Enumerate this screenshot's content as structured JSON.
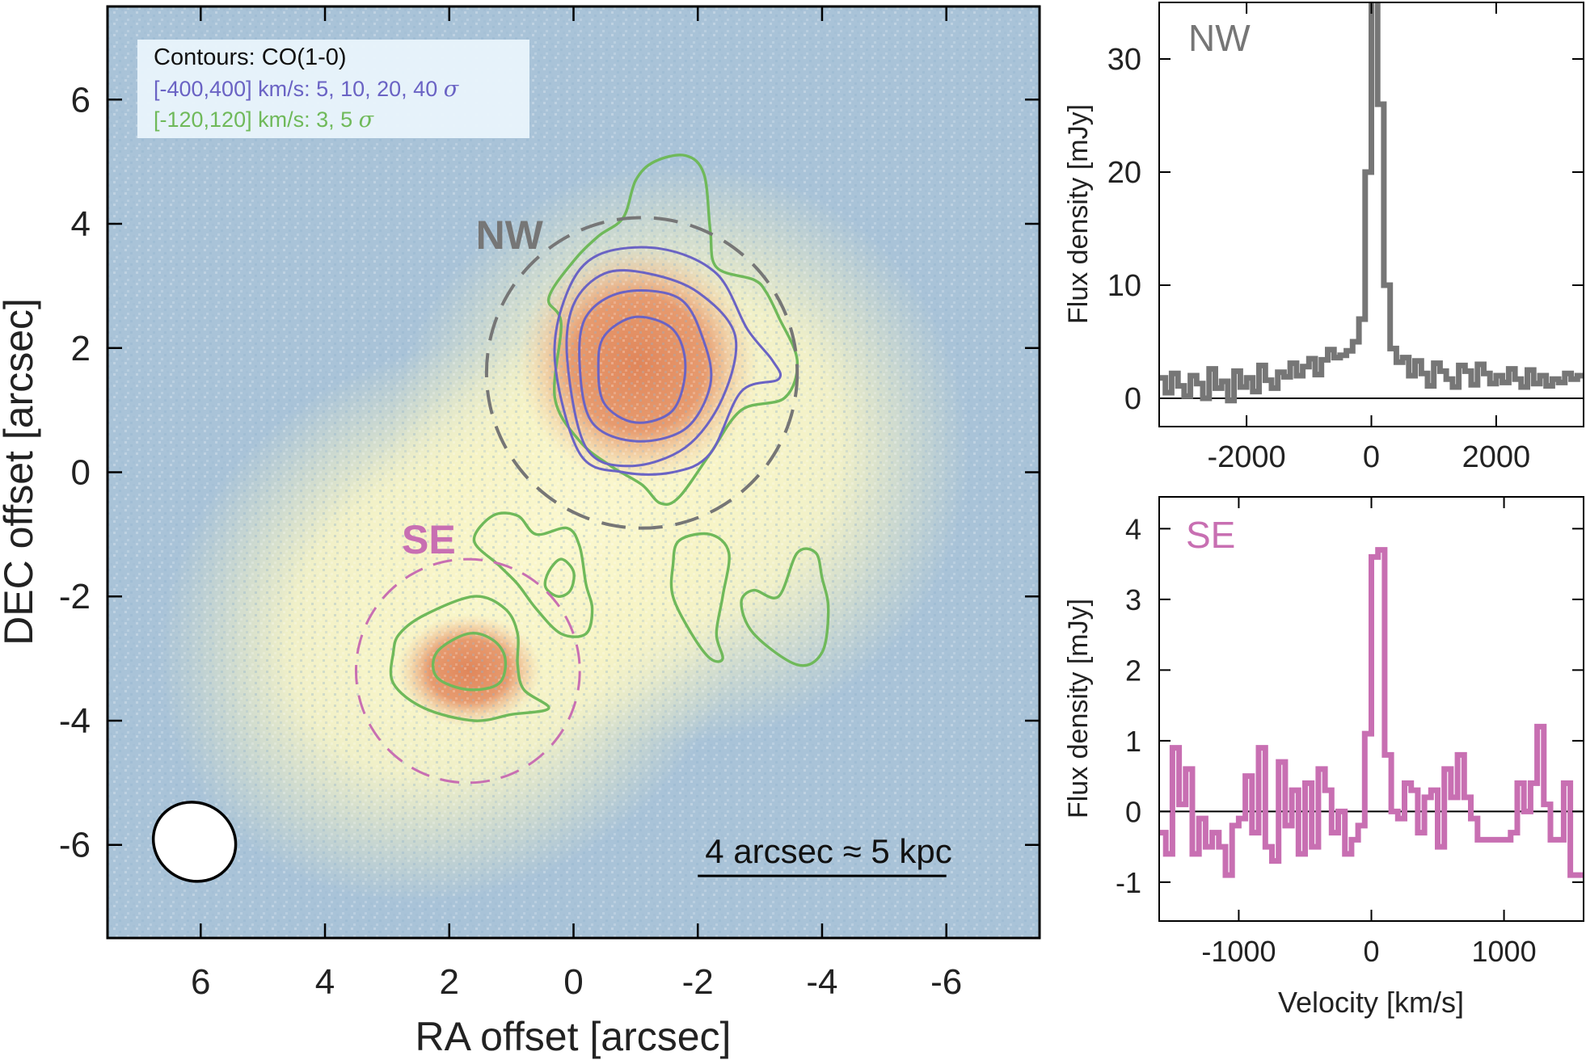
{
  "chart_data": [
    {
      "type": "image",
      "panel": "map",
      "xlabel": "RA offset [arcsec]",
      "ylabel": "DEC offset [arcsec]",
      "xlim": [
        7.5,
        -7.5
      ],
      "ylim": [
        -7.5,
        7.5
      ],
      "xticks": [
        6,
        4,
        2,
        0,
        -2,
        -4,
        -6
      ],
      "yticks": [
        6,
        4,
        2,
        0,
        -2,
        -4,
        -6
      ],
      "xtick_labels": [
        "6",
        "4",
        "2",
        "0",
        "-2",
        "-4",
        "-6"
      ],
      "ytick_labels": [
        "6",
        "4",
        "2",
        "0",
        "-2",
        "-4",
        "-6"
      ],
      "colors": {
        "background": "#a9c3d8",
        "halo": "#f7f4c6",
        "core": "#e0865a",
        "contour_broad": "#6a63c4",
        "contour_narrow": "#6fb95a",
        "nw": "#767676",
        "se": "#c86fb2"
      },
      "legend": {
        "title": "Contours: CO(1-0)",
        "broad": "[-400,400] km/s: 5, 10, 20, 40",
        "narrow": "[-120,120] km/s: 3, 5",
        "sigma": "σ"
      },
      "regions": [
        {
          "name": "NW",
          "center": [
            -1.1,
            1.6
          ],
          "radius": 2.5
        },
        {
          "name": "SE",
          "center": [
            1.7,
            -3.2
          ],
          "radius": 1.8
        }
      ],
      "scale_bar": {
        "label": "4 arcsec ≈ 5 kpc",
        "from": -2.0,
        "to": -6.0,
        "dec": -6.5
      },
      "beam": {
        "center": [
          6.1,
          -5.95
        ],
        "major": 1.35,
        "minor": 1.25,
        "angle_deg": 30
      },
      "contours_broad": [
        {
          "level": "40σ",
          "points": [
            [
              -0.4,
              1.7
            ],
            [
              -0.5,
              2.2
            ],
            [
              -1.0,
              2.5
            ],
            [
              -1.6,
              2.3
            ],
            [
              -1.8,
              1.7
            ],
            [
              -1.6,
              1.0
            ],
            [
              -1.0,
              0.8
            ],
            [
              -0.5,
              1.1
            ]
          ]
        },
        {
          "level": "20σ",
          "points": [
            [
              -0.1,
              1.7
            ],
            [
              -0.2,
              2.5
            ],
            [
              -0.8,
              2.9
            ],
            [
              -1.7,
              2.8
            ],
            [
              -2.1,
              2.1
            ],
            [
              -2.2,
              1.4
            ],
            [
              -1.8,
              0.7
            ],
            [
              -1.0,
              0.5
            ],
            [
              -0.3,
              0.8
            ]
          ]
        },
        {
          "level": "10σ",
          "points": [
            [
              0.1,
              1.8
            ],
            [
              0.0,
              2.7
            ],
            [
              -0.5,
              3.2
            ],
            [
              -1.2,
              3.2
            ],
            [
              -2.0,
              2.9
            ],
            [
              -2.6,
              2.2
            ],
            [
              -2.4,
              1.2
            ],
            [
              -1.8,
              0.4
            ],
            [
              -0.9,
              0.1
            ],
            [
              -0.2,
              0.4
            ]
          ]
        },
        {
          "level": "5σ",
          "points": [
            [
              0.3,
              1.8
            ],
            [
              0.1,
              2.9
            ],
            [
              -0.4,
              3.5
            ],
            [
              -1.4,
              3.6
            ],
            [
              -2.3,
              3.2
            ],
            [
              -2.8,
              2.3
            ],
            [
              -3.2,
              1.8
            ],
            [
              -3.3,
              1.5
            ],
            [
              -2.7,
              1.3
            ],
            [
              -2.2,
              0.3
            ],
            [
              -1.6,
              0.0
            ],
            [
              -0.8,
              0.0
            ],
            [
              -0.1,
              0.3
            ]
          ]
        }
      ],
      "contours_narrow": [
        {
          "level": "3σ",
          "points": [
            [
              -1.0,
              4.7
            ],
            [
              -1.3,
              5.0
            ],
            [
              -1.8,
              5.1
            ],
            [
              -2.1,
              4.8
            ],
            [
              -2.2,
              3.9
            ],
            [
              -2.3,
              3.3
            ],
            [
              -2.9,
              3.1
            ],
            [
              -3.1,
              2.9
            ],
            [
              -3.3,
              2.5
            ],
            [
              -3.6,
              1.8
            ],
            [
              -3.4,
              1.2
            ],
            [
              -2.7,
              1.0
            ],
            [
              -2.2,
              0.3
            ],
            [
              -1.7,
              -0.4
            ],
            [
              -1.4,
              -0.5
            ],
            [
              -1.1,
              -0.2
            ],
            [
              -0.6,
              0.1
            ],
            [
              -0.1,
              0.5
            ],
            [
              0.3,
              1.2
            ],
            [
              0.2,
              2.4
            ],
            [
              0.4,
              2.8
            ],
            [
              0.0,
              3.4
            ],
            [
              -0.4,
              3.8
            ],
            [
              -0.8,
              4.1
            ]
          ]
        },
        {
          "level": "3σ",
          "points": [
            [
              1.6,
              -1.1
            ],
            [
              1.3,
              -0.7
            ],
            [
              0.9,
              -0.7
            ],
            [
              0.6,
              -1.0
            ],
            [
              0.1,
              -0.9
            ],
            [
              -0.1,
              -1.2
            ],
            [
              -0.2,
              -1.8
            ],
            [
              -0.3,
              -2.2
            ],
            [
              -0.2,
              -2.6
            ],
            [
              0.2,
              -2.6
            ],
            [
              0.6,
              -2.2
            ],
            [
              0.9,
              -1.8
            ],
            [
              1.2,
              -1.5
            ]
          ]
        },
        {
          "level": "5σ",
          "points": [
            [
              0.4,
              -1.6
            ],
            [
              0.2,
              -1.4
            ],
            [
              0.0,
              -1.6
            ],
            [
              0.05,
              -1.9
            ],
            [
              0.25,
              -2.0
            ],
            [
              0.45,
              -1.85
            ]
          ]
        },
        {
          "level": "3σ",
          "points": [
            [
              -1.7,
              -1.1
            ],
            [
              -2.2,
              -1.0
            ],
            [
              -2.5,
              -1.3
            ],
            [
              -2.4,
              -2.0
            ],
            [
              -2.3,
              -2.6
            ],
            [
              -2.4,
              -3.0
            ],
            [
              -2.2,
              -3.0
            ],
            [
              -1.9,
              -2.6
            ],
            [
              -1.6,
              -2.0
            ],
            [
              -1.6,
              -1.5
            ]
          ]
        },
        {
          "level": "3σ",
          "points": [
            [
              -3.3,
              -2.0
            ],
            [
              -3.6,
              -1.3
            ],
            [
              -3.9,
              -1.3
            ],
            [
              -4.0,
              -1.7
            ],
            [
              -4.1,
              -2.2
            ],
            [
              -4.0,
              -2.9
            ],
            [
              -3.6,
              -3.1
            ],
            [
              -2.9,
              -2.6
            ],
            [
              -2.7,
              -2.1
            ],
            [
              -2.9,
              -1.9
            ]
          ]
        },
        {
          "level": "3σ",
          "points": [
            [
              2.4,
              -2.3
            ],
            [
              1.6,
              -2.0
            ],
            [
              1.1,
              -2.2
            ],
            [
              0.9,
              -2.6
            ],
            [
              0.9,
              -3.1
            ],
            [
              0.8,
              -3.5
            ],
            [
              0.4,
              -3.8
            ],
            [
              1.0,
              -3.9
            ],
            [
              1.6,
              -4.0
            ],
            [
              2.4,
              -3.8
            ],
            [
              2.9,
              -3.4
            ],
            [
              2.9,
              -2.9
            ],
            [
              2.8,
              -2.6
            ]
          ]
        },
        {
          "level": "5σ",
          "points": [
            [
              1.7,
              -2.6
            ],
            [
              1.3,
              -2.7
            ],
            [
              1.1,
              -3.0
            ],
            [
              1.2,
              -3.4
            ],
            [
              1.7,
              -3.5
            ],
            [
              2.2,
              -3.3
            ],
            [
              2.2,
              -2.9
            ]
          ]
        }
      ]
    },
    {
      "type": "line",
      "panel": "nw_spectrum",
      "label": "NW",
      "xlabel": "",
      "ylabel": "Flux density [mJy]",
      "xlim": [
        -3400,
        3400
      ],
      "ylim": [
        -2.5,
        35
      ],
      "xticks": [
        -2000,
        0,
        2000
      ],
      "xtick_labels": [
        "-2000",
        "0",
        "2000"
      ],
      "yticks": [
        0,
        10,
        20,
        30
      ],
      "ytick_labels": [
        "0",
        "10",
        "20",
        "30"
      ],
      "step": 100,
      "series": [
        {
          "name": "NW",
          "color": "#767676",
          "x": [
            -3400,
            -3300,
            -3200,
            -3100,
            -3000,
            -2900,
            -2800,
            -2700,
            -2600,
            -2500,
            -2400,
            -2300,
            -2200,
            -2100,
            -2000,
            -1900,
            -1800,
            -1700,
            -1600,
            -1500,
            -1400,
            -1300,
            -1200,
            -1100,
            -1000,
            -900,
            -800,
            -700,
            -600,
            -500,
            -400,
            -300,
            -200,
            -100,
            0,
            100,
            200,
            300,
            400,
            500,
            600,
            700,
            800,
            900,
            1000,
            1100,
            1200,
            1300,
            1400,
            1500,
            1600,
            1700,
            1800,
            1900,
            2000,
            2100,
            2200,
            2300,
            2400,
            2500,
            2600,
            2700,
            2800,
            2900,
            3000,
            3100,
            3200,
            3300
          ],
          "y": [
            1.8,
            0.5,
            2.2,
            1.1,
            0.2,
            2.0,
            1.3,
            0.0,
            2.6,
            0.9,
            1.5,
            -0.2,
            2.4,
            1.0,
            1.8,
            0.6,
            2.9,
            1.6,
            0.9,
            2.3,
            1.9,
            3.1,
            2.0,
            2.8,
            3.5,
            2.1,
            3.4,
            4.3,
            3.6,
            3.8,
            4.2,
            5.0,
            7.0,
            20.0,
            36.0,
            26.0,
            10.0,
            4.4,
            3.2,
            3.6,
            2.0,
            3.3,
            2.2,
            1.1,
            3.1,
            2.4,
            1.7,
            1.0,
            2.9,
            2.4,
            1.2,
            3.0,
            2.2,
            1.3,
            2.0,
            1.4,
            2.6,
            1.7,
            1.0,
            2.5,
            1.3,
            2.0,
            1.1,
            1.7,
            1.4,
            2.2,
            1.7,
            2.0
          ]
        }
      ]
    },
    {
      "type": "line",
      "panel": "se_spectrum",
      "label": "SE",
      "xlabel": "Velocity [km/s]",
      "ylabel": "Flux density [mJy]",
      "xlim": [
        -1600,
        1600
      ],
      "ylim": [
        -1.55,
        4.45
      ],
      "xticks": [
        -1000,
        0,
        1000
      ],
      "xtick_labels": [
        "-1000",
        "0",
        "1000"
      ],
      "yticks": [
        -1,
        0,
        1,
        2,
        3,
        4
      ],
      "ytick_labels": [
        "-1",
        "0",
        "1",
        "2",
        "3",
        "4"
      ],
      "step": 50,
      "series": [
        {
          "name": "SE",
          "color": "#c86fb2",
          "x": [
            -1600,
            -1550,
            -1500,
            -1450,
            -1400,
            -1350,
            -1300,
            -1250,
            -1200,
            -1150,
            -1100,
            -1050,
            -1000,
            -950,
            -900,
            -850,
            -800,
            -750,
            -700,
            -650,
            -600,
            -550,
            -500,
            -450,
            -400,
            -350,
            -300,
            -250,
            -200,
            -150,
            -100,
            -50,
            0,
            50,
            100,
            150,
            200,
            250,
            300,
            350,
            400,
            450,
            500,
            550,
            600,
            650,
            700,
            750,
            800,
            850,
            900,
            950,
            1000,
            1050,
            1100,
            1150,
            1200,
            1250,
            1300,
            1350,
            1400,
            1450,
            1500,
            1550
          ],
          "y": [
            -0.3,
            -0.6,
            0.9,
            0.1,
            0.6,
            -0.6,
            -0.1,
            -0.5,
            -0.3,
            -0.5,
            -0.9,
            -0.2,
            -0.1,
            0.5,
            -0.3,
            0.9,
            -0.5,
            -0.7,
            0.7,
            -0.2,
            0.3,
            -0.6,
            0.4,
            -0.5,
            0.6,
            0.3,
            -0.3,
            0.0,
            -0.6,
            -0.4,
            -0.2,
            1.1,
            3.6,
            3.7,
            0.8,
            0.0,
            -0.1,
            0.4,
            0.3,
            -0.3,
            0.2,
            0.3,
            -0.5,
            0.6,
            0.2,
            0.8,
            0.2,
            -0.1,
            -0.4,
            -0.4,
            -0.4,
            -0.4,
            -0.4,
            -0.3,
            0.4,
            0.0,
            0.4,
            1.2,
            0.1,
            -0.4,
            -0.4,
            0.4,
            -0.9,
            -0.9
          ]
        }
      ]
    }
  ]
}
